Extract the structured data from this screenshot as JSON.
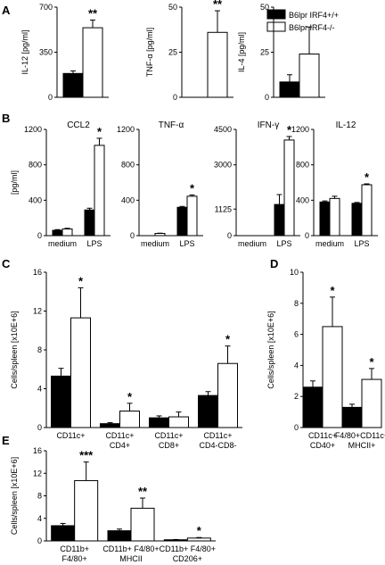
{
  "legend": {
    "series": [
      {
        "name": "B6lpr IRF4+/+",
        "color": "#000000"
      },
      {
        "name": "B6lpr IRF4-/-",
        "color": "#ffffff"
      }
    ]
  },
  "chart_data": [
    {
      "panel": "A",
      "type": "bar",
      "categories": [
        ""
      ],
      "ylabel": "IL-12 [pg/ml]",
      "ylim": [
        0,
        700
      ],
      "yticks": [
        0,
        350,
        700
      ],
      "series": [
        {
          "name": "B6lpr IRF4+/+",
          "values": [
            185
          ],
          "errors": [
            20
          ]
        },
        {
          "name": "B6lpr IRF4-/-",
          "values": [
            540
          ],
          "errors": [
            60
          ]
        }
      ],
      "annotations": [
        {
          "series": 1,
          "cat": 0,
          "text": "**"
        }
      ]
    },
    {
      "panel": "A",
      "type": "bar",
      "categories": [
        ""
      ],
      "ylabel": "TNF-α [pg/ml]",
      "ylim": [
        0,
        50
      ],
      "yticks": [
        0,
        25,
        50
      ],
      "series": [
        {
          "name": "B6lpr IRF4+/+",
          "values": [
            0
          ],
          "errors": [
            0
          ]
        },
        {
          "name": "B6lpr IRF4-/-",
          "values": [
            36
          ],
          "errors": [
            12
          ]
        }
      ],
      "annotations": [
        {
          "series": 1,
          "cat": 0,
          "text": "**"
        }
      ]
    },
    {
      "panel": "A",
      "type": "bar",
      "categories": [
        ""
      ],
      "ylabel": "IL-4 [pg/ml]",
      "ylim": [
        0,
        50
      ],
      "yticks": [
        0,
        25,
        50
      ],
      "series": [
        {
          "name": "B6lpr IRF4+/+",
          "values": [
            8.5
          ],
          "errors": [
            4
          ]
        },
        {
          "name": "B6lpr IRF4-/-",
          "values": [
            24
          ],
          "errors": [
            15
          ]
        }
      ],
      "annotations": []
    },
    {
      "panel": "B",
      "type": "bar",
      "title": "CCL2",
      "ylabel": "[pg/ml]",
      "categories": [
        "medium",
        "LPS"
      ],
      "ylim": [
        0,
        1200
      ],
      "yticks": [
        0,
        400,
        800,
        1200
      ],
      "series": [
        {
          "name": "B6lpr IRF4+/+",
          "values": [
            60,
            290
          ],
          "errors": [
            8,
            20
          ]
        },
        {
          "name": "B6lpr IRF4-/-",
          "values": [
            75,
            1020
          ],
          "errors": [
            8,
            80
          ]
        }
      ],
      "annotations": [
        {
          "series": 1,
          "cat": 1,
          "text": "*"
        }
      ]
    },
    {
      "panel": "B",
      "type": "bar",
      "title": "TNF-α",
      "categories": [
        "medium",
        "LPS"
      ],
      "ylim": [
        0,
        1200
      ],
      "yticks": [
        0,
        400,
        800,
        1200
      ],
      "series": [
        {
          "name": "B6lpr IRF4+/+",
          "values": [
            0,
            320
          ],
          "errors": [
            0,
            10
          ]
        },
        {
          "name": "B6lpr IRF4-/-",
          "values": [
            25,
            445
          ],
          "errors": [
            3,
            15
          ]
        }
      ],
      "annotations": [
        {
          "series": 1,
          "cat": 1,
          "text": "*"
        }
      ]
    },
    {
      "panel": "B",
      "type": "bar",
      "title": "IFN-γ",
      "categories": [
        "medium",
        "LPS"
      ],
      "ylim": [
        0,
        4500
      ],
      "yticks": [
        0,
        1125,
        3000,
        4500
      ],
      "series": [
        {
          "name": "B6lpr IRF4+/+",
          "values": [
            0,
            1320
          ],
          "errors": [
            0,
            420
          ]
        },
        {
          "name": "B6lpr IRF4-/-",
          "values": [
            0,
            4050
          ],
          "errors": [
            0,
            150
          ]
        }
      ],
      "annotations": [
        {
          "series": 1,
          "cat": 1,
          "text": "*"
        }
      ]
    },
    {
      "panel": "B",
      "type": "bar",
      "title": "IL-12",
      "categories": [
        "medium",
        "LPS"
      ],
      "ylim": [
        0,
        1200
      ],
      "yticks": [
        0,
        400,
        800,
        1200
      ],
      "series": [
        {
          "name": "B6lpr IRF4+/+",
          "values": [
            380,
            365
          ],
          "errors": [
            12,
            10
          ]
        },
        {
          "name": "B6lpr IRF4-/-",
          "values": [
            420,
            575
          ],
          "errors": [
            25,
            10
          ]
        }
      ],
      "annotations": [
        {
          "series": 1,
          "cat": 1,
          "text": "*"
        }
      ]
    },
    {
      "panel": "C",
      "type": "bar",
      "ylabel": "Cells/spleen [x10E+6]",
      "categories": [
        "CD11c+",
        "CD11c+\nCD4+",
        "CD11c+\nCD8+",
        "CD11c+\nCD4-CD8-"
      ],
      "ylim": [
        0,
        16
      ],
      "yticks": [
        0,
        4,
        8,
        12,
        16
      ],
      "series": [
        {
          "name": "B6lpr IRF4+/+",
          "values": [
            5.3,
            0.4,
            1.0,
            3.3
          ],
          "errors": [
            0.8,
            0.1,
            0.2,
            0.4
          ]
        },
        {
          "name": "B6lpr IRF4-/-",
          "values": [
            11.3,
            1.7,
            1.1,
            6.6
          ],
          "errors": [
            3.1,
            0.8,
            0.5,
            1.8
          ]
        }
      ],
      "annotations": [
        {
          "series": 1,
          "cat": 0,
          "text": "*"
        },
        {
          "series": 1,
          "cat": 1,
          "text": "*"
        },
        {
          "series": 1,
          "cat": 3,
          "text": "*"
        }
      ]
    },
    {
      "panel": "D",
      "type": "bar",
      "ylabel": "Cells/spleen [x10E+6]",
      "categories": [
        "CD11c+\nCD40+",
        "F4/80+CD11c+\nMHCII+"
      ],
      "ylim": [
        0,
        10
      ],
      "yticks": [
        0,
        2,
        4,
        6,
        8,
        10
      ],
      "series": [
        {
          "name": "B6lpr IRF4+/+",
          "values": [
            2.6,
            1.3
          ],
          "errors": [
            0.4,
            0.2
          ]
        },
        {
          "name": "B6lpr IRF4-/-",
          "values": [
            6.5,
            3.1
          ],
          "errors": [
            1.9,
            0.7
          ]
        }
      ],
      "annotations": [
        {
          "series": 1,
          "cat": 0,
          "text": "*"
        },
        {
          "series": 1,
          "cat": 1,
          "text": "*"
        }
      ]
    },
    {
      "panel": "E",
      "type": "bar",
      "ylabel": "Cells/spleen [x10E+6]",
      "categories": [
        "CD11b+\nF4/80+",
        "CD11b+ F4/80+\nMHCII",
        "CD11b+ F4/80+\nCD206+"
      ],
      "ylim": [
        0,
        16
      ],
      "yticks": [
        0,
        4,
        8,
        12,
        16
      ],
      "series": [
        {
          "name": "B6lpr IRF4+/+",
          "values": [
            2.7,
            1.8,
            0.2
          ],
          "errors": [
            0.4,
            0.3,
            0.05
          ]
        },
        {
          "name": "B6lpr IRF4-/-",
          "values": [
            10.7,
            5.8,
            0.5
          ],
          "errors": [
            3.3,
            1.8,
            0.1
          ]
        }
      ],
      "annotations": [
        {
          "series": 1,
          "cat": 0,
          "text": "***"
        },
        {
          "series": 1,
          "cat": 1,
          "text": "**"
        },
        {
          "series": 1,
          "cat": 2,
          "text": "*"
        }
      ]
    }
  ]
}
